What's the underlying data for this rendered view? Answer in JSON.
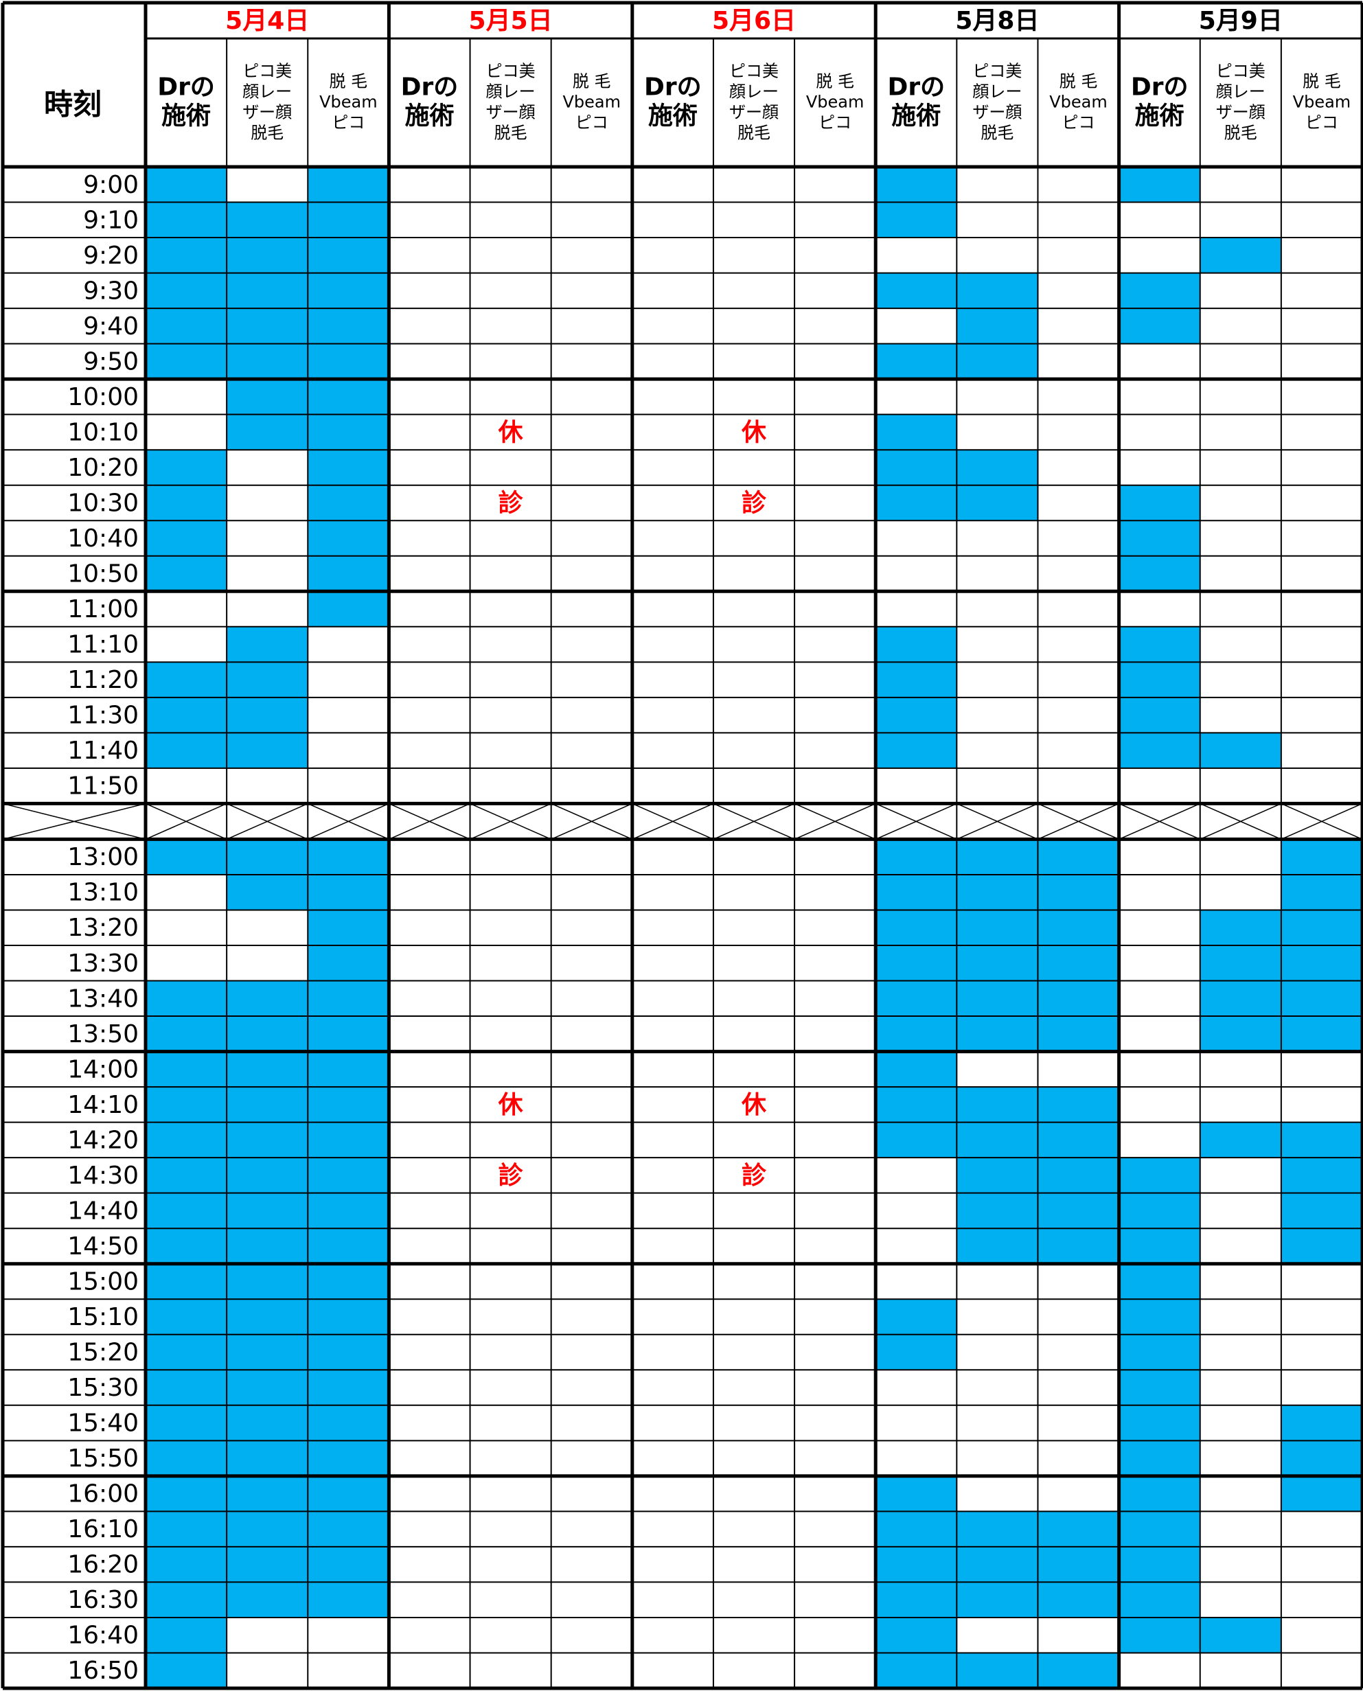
{
  "header": {
    "time_label": "時刻",
    "subcolumns": [
      [
        "Drの",
        "施術"
      ],
      [
        "ピコ美",
        "顔レー",
        "ザー顔",
        "脱毛"
      ],
      [
        "脱 毛",
        "Vbeam",
        "ピコ"
      ]
    ]
  },
  "days": [
    {
      "label": "5月4日",
      "color": "#ff0000"
    },
    {
      "label": "5月5日",
      "color": "#ff0000",
      "notes": [
        "休",
        "診",
        "休",
        "診"
      ]
    },
    {
      "label": "5月6日",
      "color": "#ff0000",
      "notes": [
        "休",
        "診",
        "休",
        "診"
      ]
    },
    {
      "label": "5月8日",
      "color": "#000000"
    },
    {
      "label": "5月9日",
      "color": "#000000"
    }
  ],
  "fill_color": "#00b0f0",
  "rows": [
    {
      "time": "9:00",
      "slots": [
        1,
        0,
        1,
        0,
        0,
        0,
        0,
        0,
        0,
        1,
        0,
        0,
        1,
        0,
        0
      ]
    },
    {
      "time": "9:10",
      "slots": [
        1,
        1,
        1,
        0,
        0,
        0,
        0,
        0,
        0,
        1,
        0,
        0,
        0,
        0,
        0
      ]
    },
    {
      "time": "9:20",
      "slots": [
        1,
        1,
        1,
        0,
        0,
        0,
        0,
        0,
        0,
        0,
        0,
        0,
        0,
        1,
        0
      ]
    },
    {
      "time": "9:30",
      "slots": [
        1,
        1,
        1,
        0,
        0,
        0,
        0,
        0,
        0,
        1,
        1,
        0,
        1,
        0,
        0
      ]
    },
    {
      "time": "9:40",
      "slots": [
        1,
        1,
        1,
        0,
        0,
        0,
        0,
        0,
        0,
        0,
        1,
        0,
        1,
        0,
        0
      ]
    },
    {
      "time": "9:50",
      "slots": [
        1,
        1,
        1,
        0,
        0,
        0,
        0,
        0,
        0,
        1,
        1,
        0,
        0,
        0,
        0
      ]
    },
    {
      "time": "10:00",
      "slots": [
        0,
        1,
        1,
        0,
        0,
        0,
        0,
        0,
        0,
        0,
        0,
        0,
        0,
        0,
        0
      ]
    },
    {
      "time": "10:10",
      "slots": [
        0,
        1,
        1,
        0,
        0,
        0,
        0,
        0,
        0,
        1,
        0,
        0,
        0,
        0,
        0
      ]
    },
    {
      "time": "10:20",
      "slots": [
        1,
        0,
        1,
        0,
        0,
        0,
        0,
        0,
        0,
        1,
        1,
        0,
        0,
        0,
        0
      ]
    },
    {
      "time": "10:30",
      "slots": [
        1,
        0,
        1,
        0,
        0,
        0,
        0,
        0,
        0,
        1,
        1,
        0,
        1,
        0,
        0
      ]
    },
    {
      "time": "10:40",
      "slots": [
        1,
        0,
        1,
        0,
        0,
        0,
        0,
        0,
        0,
        0,
        0,
        0,
        1,
        0,
        0
      ]
    },
    {
      "time": "10:50",
      "slots": [
        1,
        0,
        1,
        0,
        0,
        0,
        0,
        0,
        0,
        0,
        0,
        0,
        1,
        0,
        0
      ]
    },
    {
      "time": "11:00",
      "slots": [
        0,
        0,
        1,
        0,
        0,
        0,
        0,
        0,
        0,
        0,
        0,
        0,
        0,
        0,
        0
      ]
    },
    {
      "time": "11:10",
      "slots": [
        0,
        1,
        0,
        0,
        0,
        0,
        0,
        0,
        0,
        1,
        0,
        0,
        1,
        0,
        0
      ]
    },
    {
      "time": "11:20",
      "slots": [
        1,
        1,
        0,
        0,
        0,
        0,
        0,
        0,
        0,
        1,
        0,
        0,
        1,
        0,
        0
      ]
    },
    {
      "time": "11:30",
      "slots": [
        1,
        1,
        0,
        0,
        0,
        0,
        0,
        0,
        0,
        1,
        0,
        0,
        1,
        0,
        0
      ]
    },
    {
      "time": "11:40",
      "slots": [
        1,
        1,
        0,
        0,
        0,
        0,
        0,
        0,
        0,
        1,
        0,
        0,
        1,
        1,
        0
      ]
    },
    {
      "time": "11:50",
      "slots": [
        0,
        0,
        0,
        0,
        0,
        0,
        0,
        0,
        0,
        0,
        0,
        0,
        0,
        0,
        0
      ]
    },
    {
      "time": "13:00",
      "slots": [
        1,
        1,
        1,
        0,
        0,
        0,
        0,
        0,
        0,
        1,
        1,
        1,
        0,
        0,
        1
      ]
    },
    {
      "time": "13:10",
      "slots": [
        0,
        1,
        1,
        0,
        0,
        0,
        0,
        0,
        0,
        1,
        1,
        1,
        0,
        0,
        1
      ]
    },
    {
      "time": "13:20",
      "slots": [
        0,
        0,
        1,
        0,
        0,
        0,
        0,
        0,
        0,
        1,
        1,
        1,
        0,
        1,
        1
      ]
    },
    {
      "time": "13:30",
      "slots": [
        0,
        0,
        1,
        0,
        0,
        0,
        0,
        0,
        0,
        1,
        1,
        1,
        0,
        1,
        1
      ]
    },
    {
      "time": "13:40",
      "slots": [
        1,
        1,
        1,
        0,
        0,
        0,
        0,
        0,
        0,
        1,
        1,
        1,
        0,
        1,
        1
      ]
    },
    {
      "time": "13:50",
      "slots": [
        1,
        1,
        1,
        0,
        0,
        0,
        0,
        0,
        0,
        1,
        1,
        1,
        0,
        1,
        1
      ]
    },
    {
      "time": "14:00",
      "slots": [
        1,
        1,
        1,
        0,
        0,
        0,
        0,
        0,
        0,
        1,
        0,
        0,
        0,
        0,
        0
      ]
    },
    {
      "time": "14:10",
      "slots": [
        1,
        1,
        1,
        0,
        0,
        0,
        0,
        0,
        0,
        1,
        1,
        1,
        0,
        0,
        0
      ]
    },
    {
      "time": "14:20",
      "slots": [
        1,
        1,
        1,
        0,
        0,
        0,
        0,
        0,
        0,
        1,
        1,
        1,
        0,
        1,
        1
      ]
    },
    {
      "time": "14:30",
      "slots": [
        1,
        1,
        1,
        0,
        0,
        0,
        0,
        0,
        0,
        0,
        1,
        1,
        1,
        0,
        1
      ]
    },
    {
      "time": "14:40",
      "slots": [
        1,
        1,
        1,
        0,
        0,
        0,
        0,
        0,
        0,
        0,
        1,
        1,
        1,
        0,
        1
      ]
    },
    {
      "time": "14:50",
      "slots": [
        1,
        1,
        1,
        0,
        0,
        0,
        0,
        0,
        0,
        0,
        1,
        1,
        1,
        0,
        1
      ]
    },
    {
      "time": "15:00",
      "slots": [
        1,
        1,
        1,
        0,
        0,
        0,
        0,
        0,
        0,
        0,
        0,
        0,
        1,
        0,
        0
      ]
    },
    {
      "time": "15:10",
      "slots": [
        1,
        1,
        1,
        0,
        0,
        0,
        0,
        0,
        0,
        1,
        0,
        0,
        1,
        0,
        0
      ]
    },
    {
      "time": "15:20",
      "slots": [
        1,
        1,
        1,
        0,
        0,
        0,
        0,
        0,
        0,
        1,
        0,
        0,
        1,
        0,
        0
      ]
    },
    {
      "time": "15:30",
      "slots": [
        1,
        1,
        1,
        0,
        0,
        0,
        0,
        0,
        0,
        0,
        0,
        0,
        1,
        0,
        0
      ]
    },
    {
      "time": "15:40",
      "slots": [
        1,
        1,
        1,
        0,
        0,
        0,
        0,
        0,
        0,
        0,
        0,
        0,
        1,
        0,
        1
      ]
    },
    {
      "time": "15:50",
      "slots": [
        1,
        1,
        1,
        0,
        0,
        0,
        0,
        0,
        0,
        0,
        0,
        0,
        1,
        0,
        1
      ]
    },
    {
      "time": "16:00",
      "slots": [
        1,
        1,
        1,
        0,
        0,
        0,
        0,
        0,
        0,
        1,
        0,
        0,
        1,
        0,
        1
      ]
    },
    {
      "time": "16:10",
      "slots": [
        1,
        1,
        1,
        0,
        0,
        0,
        0,
        0,
        0,
        1,
        1,
        1,
        1,
        0,
        0
      ]
    },
    {
      "time": "16:20",
      "slots": [
        1,
        1,
        1,
        0,
        0,
        0,
        0,
        0,
        0,
        1,
        1,
        1,
        1,
        0,
        0
      ]
    },
    {
      "time": "16:30",
      "slots": [
        1,
        1,
        1,
        0,
        0,
        0,
        0,
        0,
        0,
        1,
        1,
        1,
        1,
        0,
        0
      ]
    },
    {
      "time": "16:40",
      "slots": [
        1,
        0,
        0,
        0,
        0,
        0,
        0,
        0,
        0,
        1,
        0,
        0,
        1,
        1,
        0
      ]
    },
    {
      "time": "16:50",
      "slots": [
        1,
        0,
        0,
        0,
        0,
        0,
        0,
        0,
        0,
        1,
        1,
        1,
        0,
        0,
        0
      ]
    }
  ]
}
